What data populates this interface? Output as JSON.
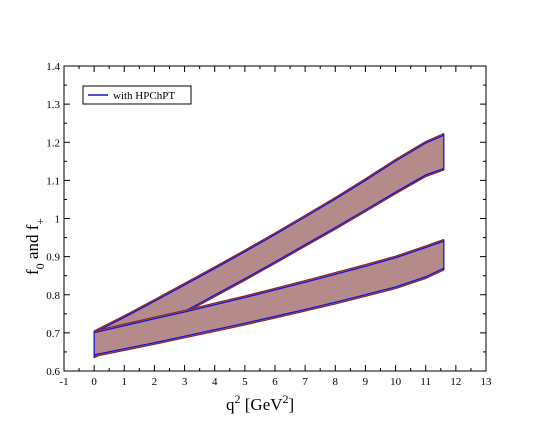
{
  "chart_data": {
    "type": "area",
    "xlabel": "q",
    "xlabel_sup": "2",
    "xlabel_unit_open": " [GeV",
    "xlabel_unit_sup": "2",
    "xlabel_unit_close": "]",
    "ylabel": "f",
    "ylabel_sub1": "0",
    "ylabel_mid": " and f",
    "ylabel_sub2": "+",
    "xlim": [
      -1,
      13
    ],
    "ylim": [
      0.6,
      1.4
    ],
    "xticks": [
      -1,
      0,
      1,
      2,
      3,
      4,
      5,
      6,
      7,
      8,
      9,
      10,
      11,
      12,
      13
    ],
    "yticks": [
      0.6,
      0.7,
      0.8,
      0.9,
      1.0,
      1.1,
      1.2,
      1.3,
      1.4
    ],
    "ytick_labels": [
      "0.6",
      "0.7",
      "0.8",
      "0.9",
      "1",
      "1.1",
      "1.2",
      "1.3",
      "1.4"
    ],
    "legend": {
      "position": "top-left",
      "entries": [
        "with HPChPT"
      ]
    },
    "colors": {
      "band_fill": "#b58a8a",
      "band_edge_outer": "#8b2020",
      "band_edge_inner": "#1414d2"
    },
    "series": [
      {
        "name": "with HPChPT",
        "label": "f_+ band",
        "x": [
          0,
          1,
          2,
          3,
          4,
          5,
          6,
          7,
          8,
          9,
          10,
          11,
          11.6
        ],
        "upper": [
          0.705,
          0.745,
          0.787,
          0.83,
          0.873,
          0.917,
          0.962,
          1.008,
          1.055,
          1.104,
          1.155,
          1.202,
          1.223
        ],
        "lower": [
          0.635,
          0.672,
          0.711,
          0.752,
          0.795,
          0.838,
          0.882,
          0.927,
          0.972,
          1.018,
          1.065,
          1.11,
          1.127
        ]
      },
      {
        "name": "with HPChPT",
        "label": "f_0 band",
        "x": [
          0,
          1,
          2,
          3,
          4,
          5,
          6,
          7,
          8,
          9,
          10,
          11,
          11.6
        ],
        "upper": [
          0.705,
          0.723,
          0.741,
          0.759,
          0.778,
          0.797,
          0.817,
          0.837,
          0.858,
          0.879,
          0.901,
          0.928,
          0.945
        ],
        "lower": [
          0.638,
          0.654,
          0.67,
          0.687,
          0.704,
          0.721,
          0.739,
          0.757,
          0.776,
          0.796,
          0.816,
          0.843,
          0.865
        ]
      }
    ]
  }
}
